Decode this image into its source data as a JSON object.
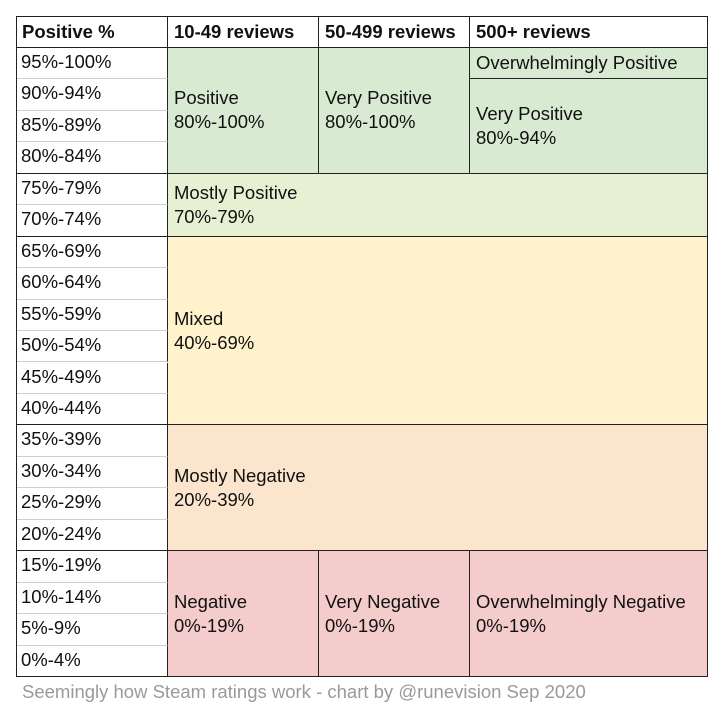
{
  "chart_data": {
    "type": "table",
    "headers": [
      "Positive %",
      "10-49 reviews",
      "50-499 reviews",
      "500+ reviews"
    ],
    "rows": [
      "95%-100%",
      "90%-94%",
      "85%-89%",
      "80%-84%",
      "75%-79%",
      "70%-74%",
      "65%-69%",
      "60%-64%",
      "55%-59%",
      "50%-54%",
      "45%-49%",
      "40%-44%",
      "35%-39%",
      "30%-34%",
      "25%-29%",
      "20%-24%",
      "15%-19%",
      "10%-14%",
      "5%-9%",
      "0%-4%"
    ],
    "ratings": {
      "positive": {
        "name": "Positive",
        "range": "80%-100%",
        "color": "#d9ead3"
      },
      "very_positive_mid": {
        "name": "Very Positive",
        "range": "80%-100%",
        "color": "#d9ead3"
      },
      "overwhelmingly_positive": {
        "name": "Overwhelmingly Positive",
        "color": "#d9ead3"
      },
      "very_positive_large": {
        "name": "Very Positive",
        "range": "80%-94%",
        "color": "#d9ead3"
      },
      "mostly_positive": {
        "name": "Mostly Positive",
        "range": "70%-79%",
        "color": "#e7f0d3"
      },
      "mixed": {
        "name": "Mixed",
        "range": "40%-69%",
        "color": "#fff2cc"
      },
      "mostly_negative": {
        "name": "Mostly Negative",
        "range": "20%-39%",
        "color": "#fce5cd"
      },
      "negative": {
        "name": "Negative",
        "range": "0%-19%",
        "color": "#f4cccc"
      },
      "very_negative": {
        "name": "Very Negative",
        "range": "0%-19%",
        "color": "#f4cccc"
      },
      "overwhelmingly_negative": {
        "name": "Overwhelmingly Negative",
        "range": "0%-19%",
        "color": "#f4cccc"
      }
    }
  },
  "caption": "Seemingly how Steam ratings work - chart by @runevision Sep 2020"
}
